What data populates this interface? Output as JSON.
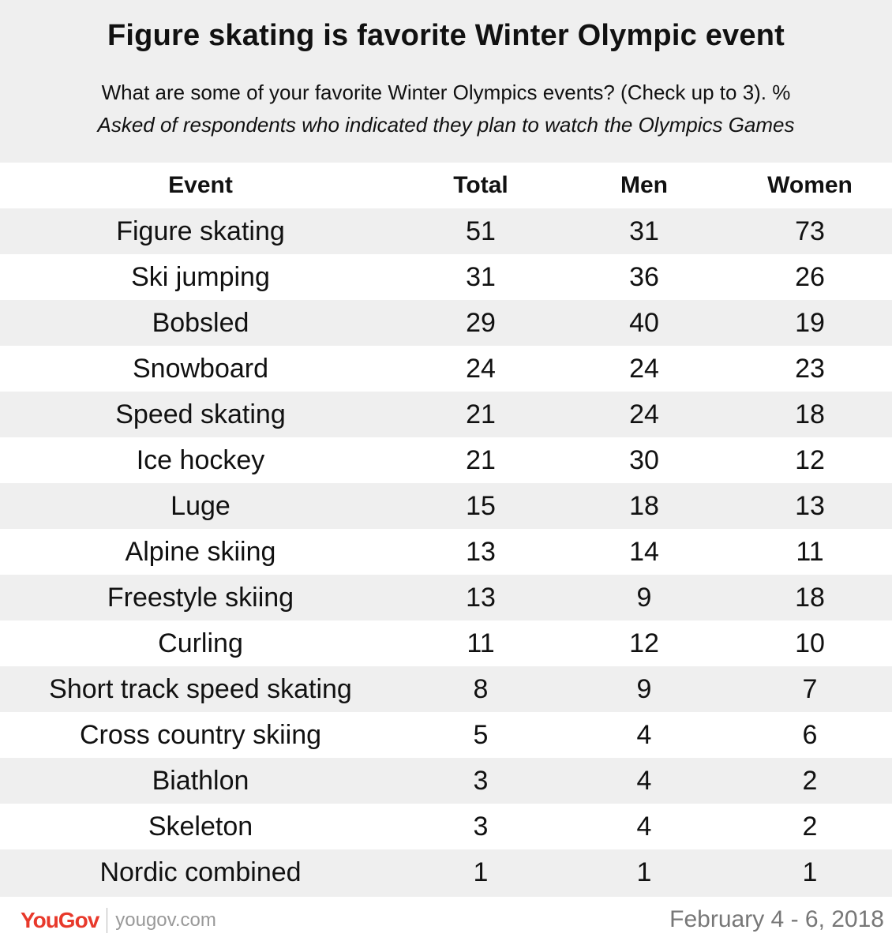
{
  "header": {
    "title": "Figure skating is favorite Winter Olympic event",
    "subtitle": "What are some of your favorite Winter Olympics events? (Check up to 3). %",
    "subtitle_note": "Asked of respondents who indicated they plan to watch the Olympics Games"
  },
  "footer": {
    "logo_text": "YouGov",
    "url": "yougov.com",
    "dates": "February 4 - 6, 2018"
  },
  "colors": {
    "brand": "#e8392b",
    "row_alt": "#efefef",
    "row": "#ffffff",
    "text": "#111111",
    "muted": "#777777"
  },
  "chart_data": {
    "type": "table",
    "columns": [
      "Event",
      "Total",
      "Men",
      "Women"
    ],
    "rows": [
      [
        "Figure skating",
        "51",
        "31",
        "73"
      ],
      [
        "Ski jumping",
        "31",
        "36",
        "26"
      ],
      [
        "Bobsled",
        "29",
        "40",
        "19"
      ],
      [
        "Snowboard",
        "24",
        "24",
        "23"
      ],
      [
        "Speed skating",
        "21",
        "24",
        "18"
      ],
      [
        "Ice hockey",
        "21",
        "30",
        "12"
      ],
      [
        "Luge",
        "15",
        "18",
        "13"
      ],
      [
        "Alpine skiing",
        "13",
        "14",
        "11"
      ],
      [
        "Freestyle skiing",
        "13",
        "9",
        "18"
      ],
      [
        "Curling",
        "11",
        "12",
        "10"
      ],
      [
        "Short track speed skating",
        "8",
        "9",
        "7"
      ],
      [
        "Cross country skiing",
        "5",
        "4",
        "6"
      ],
      [
        "Biathlon",
        "3",
        "4",
        "2"
      ],
      [
        "Skeleton",
        "3",
        "4",
        "2"
      ],
      [
        "Nordic combined",
        "1",
        "1",
        "1"
      ]
    ]
  }
}
